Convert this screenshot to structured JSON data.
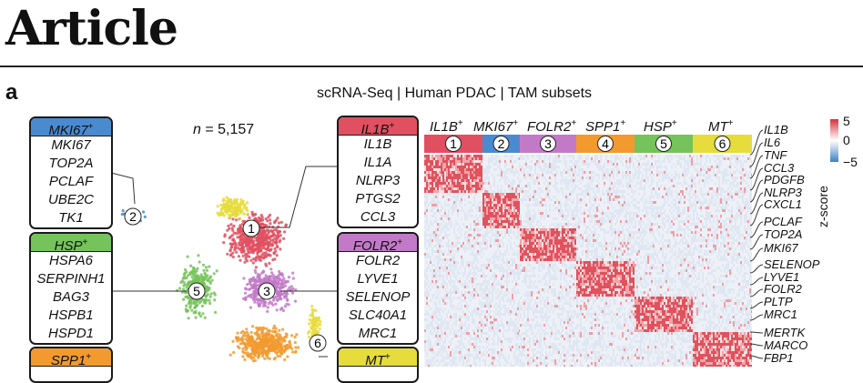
{
  "header": {
    "title": "Article"
  },
  "panel": {
    "letter": "a",
    "title": "scRNA-Seq | Human PDAC | TAM subsets",
    "n_italic": "n",
    "n_rest": " = 5,157"
  },
  "left_boxes": [
    {
      "name": "MKI67",
      "sup": "+",
      "color": "#4a8bd0",
      "genes": [
        "MKI67",
        "TOP2A",
        "PCLAF",
        "UBE2C",
        "TK1"
      ]
    },
    {
      "name": "HSP",
      "sup": "+",
      "color": "#75c35a",
      "genes": [
        "HSPA6",
        "SERPINH1",
        "BAG3",
        "HSPB1",
        "HSPD1"
      ]
    },
    {
      "name": "SPP1",
      "sup": "+",
      "color": "#f29a2e",
      "genes": []
    }
  ],
  "mid_boxes": [
    {
      "name": "IL1B",
      "sup": "+",
      "color": "#e05060",
      "genes": [
        "IL1B",
        "IL1A",
        "NLRP3",
        "PTGS2",
        "CCL3"
      ]
    },
    {
      "name": "FOLR2",
      "sup": "+",
      "color": "#c27ac8",
      "genes": [
        "FOLR2",
        "LYVE1",
        "SELENOP",
        "SLC40A1",
        "MRC1"
      ]
    },
    {
      "name": "MT",
      "sup": "+",
      "color": "#e6dc3c",
      "genes": []
    }
  ],
  "heatmap": {
    "columns": [
      {
        "name": "IL1B",
        "sup": "+",
        "num": "1",
        "color": "#e05060"
      },
      {
        "name": "MKI67",
        "sup": "+",
        "num": "2",
        "color": "#4a8bd0"
      },
      {
        "name": "FOLR2",
        "sup": "+",
        "num": "3",
        "color": "#c27ac8"
      },
      {
        "name": "SPP1",
        "sup": "+",
        "num": "4",
        "color": "#f29a2e"
      },
      {
        "name": "HSP",
        "sup": "+",
        "num": "5",
        "color": "#75c35a"
      },
      {
        "name": "MT",
        "sup": "+",
        "num": "6",
        "color": "#e6dc3c"
      }
    ],
    "genes": [
      "IL1B",
      "IL6",
      "TNF",
      "CCL3",
      "PDGFB",
      "NLRP3",
      "CXCL1",
      "PCLAF",
      "TOP2A",
      "MKI67",
      "SELENOP",
      "LYVE1",
      "FOLR2",
      "PLTP",
      "MRC1",
      "MERTK",
      "MARCO",
      "FBP1"
    ],
    "legend": {
      "max": "5",
      "mid": "0",
      "min": "−5",
      "label": "z-score"
    }
  },
  "cluster_labels": [
    "1",
    "2",
    "3",
    "5",
    "6"
  ]
}
